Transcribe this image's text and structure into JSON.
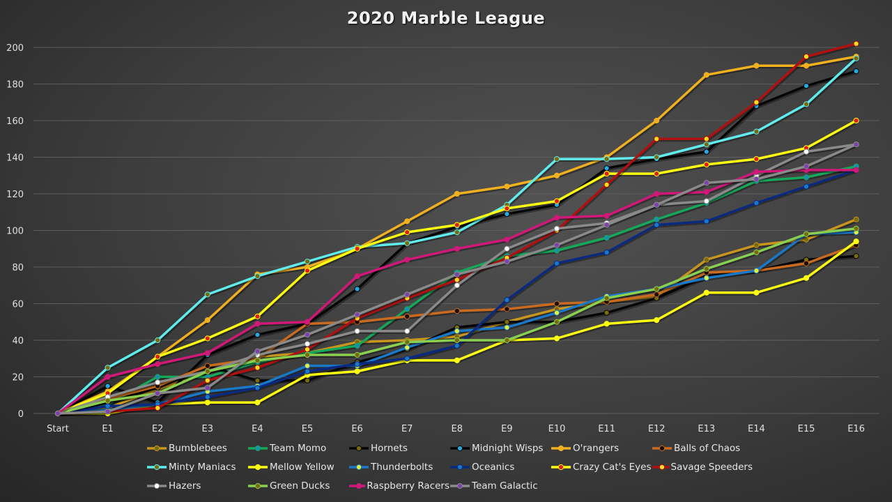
{
  "chart_data": {
    "type": "line",
    "title": "2020 Marble League",
    "xlabel": "",
    "ylabel": "",
    "ylim": [
      0,
      200
    ],
    "yticks": [
      "0",
      "20",
      "40",
      "60",
      "80",
      "100",
      "120",
      "140",
      "160",
      "180",
      "200"
    ],
    "grid": true,
    "legend_position": "bottom",
    "categories": [
      "Start",
      "E1",
      "E2",
      "E3",
      "E4",
      "E5",
      "E6",
      "E7",
      "E8",
      "E9",
      "E10",
      "E11",
      "E12",
      "E13",
      "E14",
      "E15",
      "E16"
    ],
    "series": [
      {
        "name": "Bumblebees",
        "line": "#c8961e",
        "marker": "#7a6a10",
        "values": [
          0,
          3,
          13,
          23,
          31,
          33,
          39,
          40,
          42,
          50,
          57,
          61,
          64,
          84,
          92,
          95,
          106
        ]
      },
      {
        "name": "Team Momo",
        "line": "#16a85a",
        "marker": "#1a8fb0",
        "values": [
          0,
          5,
          20,
          20,
          28,
          33,
          37,
          57,
          77,
          86,
          89,
          96,
          106,
          115,
          127,
          129,
          135
        ]
      },
      {
        "name": "Hornets",
        "line": "#050505",
        "marker": "#7a6a10",
        "values": [
          0,
          6,
          14,
          26,
          18,
          18,
          28,
          35,
          47,
          50,
          50,
          55,
          63,
          75,
          78,
          84,
          86
        ]
      },
      {
        "name": "Midnight Wisps",
        "line": "#050505",
        "marker": "#29a8e0",
        "values": [
          0,
          15,
          6,
          32,
          43,
          49,
          68,
          93,
          102,
          109,
          114,
          134,
          139,
          143,
          168,
          179,
          187
        ]
      },
      {
        "name": "O'rangers",
        "line": "#f0b020",
        "marker": "#f0b020",
        "values": [
          0,
          12,
          31,
          51,
          76,
          80,
          90,
          105,
          120,
          124,
          130,
          140,
          160,
          185,
          190,
          190,
          195
        ]
      },
      {
        "name": "Balls of Chaos",
        "line": "#c86a20",
        "marker": "#1a0a00",
        "values": [
          0,
          8,
          15,
          26,
          30,
          49,
          50,
          53,
          56,
          57,
          60,
          61,
          65,
          77,
          78,
          82,
          92
        ]
      },
      {
        "name": "Minty Maniacs",
        "line": "#60ecec",
        "marker": "#7a6a10",
        "values": [
          0,
          25,
          40,
          65,
          75,
          83,
          91,
          93,
          99,
          114,
          139,
          139,
          140,
          147,
          154,
          169,
          194
        ]
      },
      {
        "name": "Mellow Yellow",
        "line": "#ffff10",
        "marker": "#ffff10",
        "values": [
          0,
          0,
          5,
          6,
          6,
          21,
          23,
          29,
          29,
          40,
          41,
          49,
          51,
          66,
          66,
          74,
          94
        ]
      },
      {
        "name": "Thunderbolts",
        "line": "#1a78c8",
        "marker": "#e0f040",
        "values": [
          0,
          2,
          5,
          12,
          15,
          26,
          26,
          36,
          45,
          47,
          55,
          64,
          68,
          74,
          78,
          98,
          99
        ]
      },
      {
        "name": "Oceanics",
        "line": "#0a2a80",
        "marker": "#1a78c8",
        "values": [
          0,
          4,
          5,
          9,
          14,
          23,
          27,
          30,
          37,
          62,
          82,
          88,
          103,
          105,
          115,
          124,
          133
        ]
      },
      {
        "name": "Crazy Cat's Eyes",
        "line": "#ffff10",
        "marker": "#e02010",
        "values": [
          0,
          11,
          31,
          41,
          53,
          78,
          90,
          99,
          103,
          112,
          116,
          131,
          131,
          136,
          139,
          145,
          160
        ]
      },
      {
        "name": "Savage Speeders",
        "line": "#b01010",
        "marker": "#ffe020",
        "values": [
          0,
          1,
          3,
          18,
          25,
          35,
          52,
          63,
          73,
          85,
          100,
          125,
          150,
          150,
          170,
          195,
          202
        ]
      },
      {
        "name": "Hazers",
        "line": "#8a8a8a",
        "marker": "#ffffff",
        "values": [
          0,
          9,
          17,
          23,
          32,
          38,
          45,
          45,
          70,
          90,
          101,
          104,
          114,
          116,
          130,
          143,
          147
        ]
      },
      {
        "name": "Green Ducks",
        "line": "#8ad050",
        "marker": "#7a6a10",
        "values": [
          0,
          7,
          11,
          23,
          29,
          32,
          32,
          39,
          40,
          40,
          50,
          63,
          68,
          79,
          88,
          98,
          101
        ]
      },
      {
        "name": "Raspberry Racers",
        "line": "#d01878",
        "marker": "#d01878",
        "values": [
          0,
          20,
          27,
          33,
          49,
          50,
          75,
          84,
          90,
          95,
          107,
          108,
          120,
          121,
          132,
          133,
          133
        ]
      },
      {
        "name": "Team Galactic",
        "line": "#8a8a8a",
        "marker": "#8040b0",
        "values": [
          0,
          1,
          11,
          14,
          34,
          43,
          54,
          65,
          76,
          83,
          92,
          103,
          114,
          126,
          128,
          135,
          147
        ]
      }
    ]
  }
}
